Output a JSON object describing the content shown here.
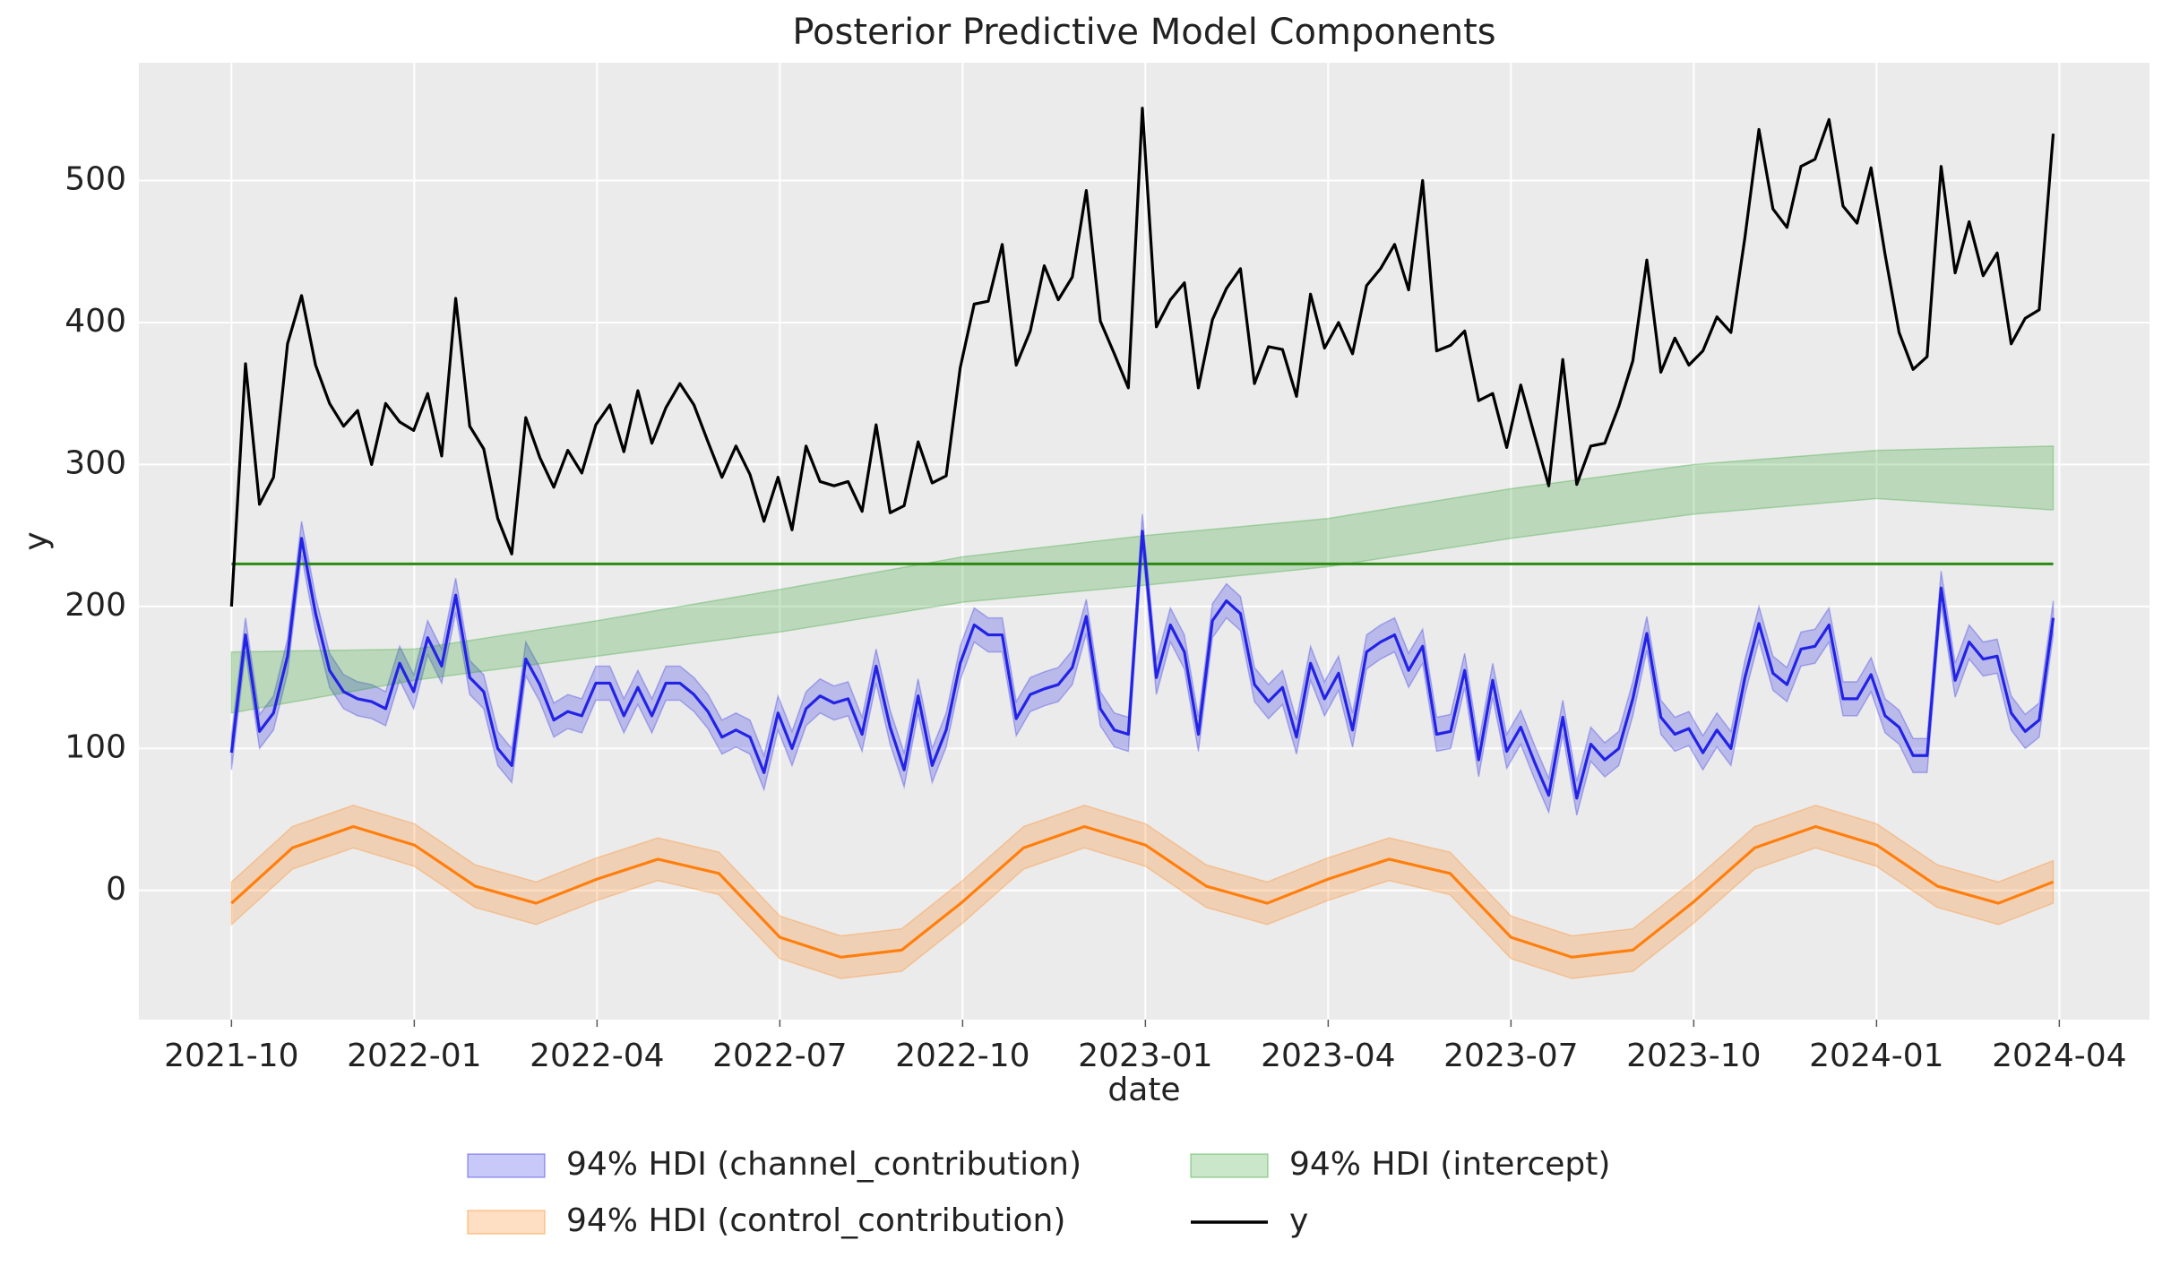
{
  "chart_data": {
    "type": "line",
    "title": "Posterior Predictive Model Components",
    "xlabel": "date",
    "ylabel": "y",
    "xlim": [
      -1.52,
      31.48
    ],
    "ylim": [
      -91,
      583
    ],
    "xticks": [
      {
        "value": 0,
        "label": "2021-10"
      },
      {
        "value": 3,
        "label": "2022-01"
      },
      {
        "value": 6,
        "label": "2022-04"
      },
      {
        "value": 9,
        "label": "2022-07"
      },
      {
        "value": 12,
        "label": "2022-10"
      },
      {
        "value": 15,
        "label": "2023-01"
      },
      {
        "value": 18,
        "label": "2023-04"
      },
      {
        "value": 21,
        "label": "2023-07"
      },
      {
        "value": 24,
        "label": "2023-10"
      },
      {
        "value": 27,
        "label": "2024-01"
      },
      {
        "value": 30,
        "label": "2024-04"
      }
    ],
    "yticks": [
      0,
      100,
      200,
      300,
      400,
      500
    ],
    "grid": true,
    "legend": "lower center",
    "legend_columns": 3,
    "x": [
      0,
      0.23,
      0.46,
      0.69,
      0.92,
      1.15,
      1.38,
      1.61,
      1.84,
      2.07,
      2.3,
      2.53,
      2.76,
      2.99,
      3.22,
      3.45,
      3.68,
      3.91,
      4.14,
      4.37,
      4.6,
      4.83,
      5.06,
      5.29,
      5.52,
      5.75,
      5.98,
      6.21,
      6.44,
      6.67,
      6.9,
      7.13,
      7.36,
      7.59,
      7.82,
      8.05,
      8.28,
      8.51,
      8.74,
      8.97,
      9.2,
      9.43,
      9.66,
      9.89,
      10.12,
      10.35,
      10.58,
      10.81,
      11.04,
      11.27,
      11.5,
      11.73,
      11.96,
      12.19,
      12.42,
      12.65,
      12.88,
      13.11,
      13.34,
      13.57,
      13.8,
      14.03,
      14.26,
      14.49,
      14.72,
      14.95,
      15.18,
      15.41,
      15.64,
      15.87,
      16.1,
      16.33,
      16.56,
      16.79,
      17.02,
      17.25,
      17.48,
      17.71,
      17.94,
      18.17,
      18.4,
      18.63,
      18.86,
      19.09,
      19.32,
      19.55,
      19.78,
      20.01,
      20.24,
      20.47,
      20.7,
      20.93,
      21.16,
      21.39,
      21.62,
      21.85,
      22.08,
      22.31,
      22.54,
      22.77,
      23,
      23.23,
      23.46,
      23.69,
      23.92,
      24.15,
      24.38,
      24.61,
      24.84,
      25.07,
      25.3,
      25.53,
      25.76,
      25.99,
      26.22,
      26.45,
      26.68,
      26.91,
      27.14,
      27.37,
      27.6,
      27.83,
      28.06,
      28.29,
      28.52,
      28.75,
      28.98,
      29.21,
      29.44,
      29.67,
      29.9
    ],
    "series": [
      {
        "name": "94% HDI (channel_contribution)",
        "color": "#2323e6",
        "values": [
          97,
          180,
          112,
          125,
          165,
          248,
          195,
          155,
          140,
          135,
          133,
          128,
          160,
          140,
          178,
          158,
          208,
          150,
          140,
          100,
          88,
          163,
          145,
          120,
          126,
          123,
          146,
          146,
          123,
          143,
          123,
          146,
          146,
          138,
          126,
          108,
          113,
          108,
          83,
          125,
          100,
          128,
          137,
          132,
          135,
          110,
          158,
          115,
          85,
          137,
          88,
          113,
          160,
          187,
          180,
          180,
          121,
          138,
          142,
          145,
          157,
          193,
          128,
          113,
          110,
          253,
          150,
          187,
          168,
          110,
          190,
          204,
          195,
          145,
          133,
          143,
          108,
          160,
          135,
          153,
          113,
          168,
          175,
          180,
          155,
          172,
          110,
          112,
          155,
          92,
          148,
          98,
          115,
          90,
          67,
          122,
          65,
          103,
          92,
          100,
          135,
          181,
          122,
          110,
          114,
          97,
          113,
          100,
          150,
          188,
          153,
          145,
          170,
          172,
          187,
          135,
          135,
          152,
          123,
          115,
          95,
          95,
          213,
          148,
          175,
          163,
          165,
          125,
          112,
          120,
          192
        ],
        "lower": [
          85,
          168,
          100,
          113,
          153,
          236,
          183,
          143,
          128,
          123,
          121,
          116,
          148,
          128,
          166,
          146,
          196,
          138,
          128,
          88,
          76,
          151,
          133,
          108,
          114,
          111,
          134,
          134,
          111,
          131,
          111,
          134,
          134,
          126,
          114,
          96,
          101,
          96,
          71,
          113,
          88,
          116,
          125,
          120,
          123,
          98,
          146,
          103,
          73,
          125,
          76,
          101,
          148,
          175,
          168,
          168,
          109,
          126,
          130,
          133,
          145,
          181,
          116,
          101,
          98,
          241,
          138,
          175,
          156,
          98,
          178,
          192,
          183,
          133,
          121,
          131,
          96,
          148,
          123,
          141,
          101,
          156,
          163,
          168,
          143,
          160,
          98,
          100,
          143,
          80,
          136,
          86,
          103,
          78,
          55,
          110,
          53,
          91,
          80,
          88,
          123,
          169,
          110,
          98,
          102,
          85,
          101,
          88,
          138,
          176,
          141,
          133,
          158,
          160,
          175,
          123,
          123,
          140,
          111,
          103,
          83,
          83,
          201,
          136,
          163,
          151,
          153,
          113,
          100,
          108,
          180
        ],
        "upper": [
          109,
          192,
          124,
          137,
          177,
          260,
          207,
          167,
          152,
          147,
          145,
          140,
          172,
          152,
          190,
          170,
          220,
          162,
          152,
          112,
          100,
          175,
          157,
          132,
          138,
          135,
          158,
          158,
          135,
          155,
          135,
          158,
          158,
          150,
          138,
          120,
          125,
          120,
          95,
          137,
          112,
          140,
          149,
          144,
          147,
          122,
          170,
          127,
          97,
          149,
          100,
          125,
          172,
          199,
          192,
          192,
          133,
          150,
          154,
          157,
          169,
          205,
          140,
          125,
          122,
          265,
          162,
          199,
          180,
          122,
          202,
          216,
          207,
          157,
          145,
          155,
          120,
          172,
          147,
          165,
          125,
          180,
          187,
          192,
          167,
          184,
          122,
          124,
          167,
          104,
          160,
          110,
          127,
          102,
          79,
          134,
          77,
          115,
          104,
          112,
          147,
          193,
          134,
          122,
          126,
          109,
          125,
          112,
          162,
          200,
          165,
          157,
          182,
          184,
          199,
          147,
          147,
          164,
          135,
          127,
          107,
          107,
          225,
          160,
          187,
          175,
          177,
          137,
          124,
          132,
          204
        ]
      },
      {
        "name": "94% HDI (control_contribution)",
        "color": "#ff7f0e",
        "x": [
          0,
          1,
          2,
          3,
          4,
          5,
          6,
          7,
          8,
          9,
          10,
          11,
          12,
          13,
          14,
          15,
          16,
          17,
          18,
          19,
          20,
          21,
          22,
          23,
          24,
          25,
          26,
          27,
          28,
          29,
          29.9
        ],
        "values": [
          -9,
          30,
          45,
          32,
          3,
          -9,
          8,
          22,
          12,
          -33,
          -47,
          -42,
          -8,
          30,
          45,
          32,
          3,
          -9,
          8,
          22,
          12,
          -33,
          -47,
          -42,
          -8,
          30,
          45,
          32,
          3,
          -9,
          6
        ],
        "lower": [
          -24,
          15,
          30,
          17,
          -12,
          -24,
          -7,
          7,
          -3,
          -48,
          -62,
          -57,
          -23,
          15,
          30,
          17,
          -12,
          -24,
          -7,
          7,
          -3,
          -48,
          -62,
          -57,
          -23,
          15,
          30,
          17,
          -12,
          -24,
          -9
        ],
        "upper": [
          6,
          45,
          60,
          47,
          18,
          6,
          23,
          37,
          27,
          -18,
          -32,
          -27,
          7,
          45,
          60,
          47,
          18,
          6,
          23,
          37,
          27,
          -18,
          -32,
          -27,
          7,
          45,
          60,
          47,
          18,
          6,
          21
        ]
      },
      {
        "name": "94% HDI (intercept)",
        "color": "#2ca02c",
        "x": [
          0,
          3,
          6,
          9,
          12,
          15,
          18,
          21,
          24,
          27,
          29.9
        ],
        "lower": [
          125,
          148,
          165,
          182,
          203,
          215,
          228,
          248,
          265,
          276,
          268
        ],
        "upper": [
          168,
          170,
          190,
          212,
          235,
          250,
          262,
          283,
          300,
          310,
          313
        ]
      },
      {
        "name": "y",
        "color": "#000000",
        "values": [
          200,
          371,
          272,
          291,
          385,
          419,
          370,
          343,
          327,
          338,
          300,
          343,
          330,
          324,
          350,
          306,
          417,
          327,
          311,
          262,
          237,
          333,
          305,
          284,
          310,
          294,
          328,
          342,
          309,
          352,
          315,
          340,
          357,
          342,
          316,
          291,
          313,
          293,
          260,
          291,
          254,
          313,
          288,
          285,
          288,
          267,
          328,
          266,
          271,
          316,
          287,
          292,
          368,
          413,
          415,
          455,
          370,
          394,
          440,
          416,
          432,
          493,
          401,
          378,
          354,
          551,
          397,
          416,
          428,
          354,
          402,
          424,
          438,
          357,
          383,
          381,
          348,
          420,
          382,
          400,
          378,
          426,
          438,
          455,
          423,
          500,
          380,
          384,
          394,
          345,
          350,
          312,
          356,
          320,
          285,
          374,
          286,
          313,
          315,
          341,
          373,
          444,
          365,
          389,
          370,
          380,
          404,
          393,
          460,
          536,
          480,
          467,
          510,
          515,
          543,
          482,
          470,
          509,
          448,
          393,
          367,
          376,
          510,
          435,
          471,
          433,
          449,
          385,
          403,
          409,
          533
        ]
      }
    ],
    "hlines": [
      {
        "value": 230,
        "color": "#2b8a12"
      }
    ]
  }
}
